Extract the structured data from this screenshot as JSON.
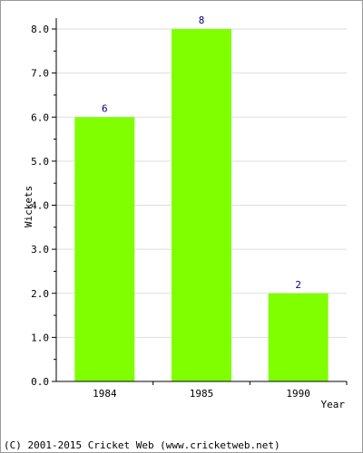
{
  "chart_data": {
    "type": "bar",
    "categories": [
      "1984",
      "1985",
      "1990"
    ],
    "values": [
      6,
      8,
      2
    ],
    "data_labels": [
      "6",
      "8",
      "2"
    ],
    "xlabel": "Year",
    "ylabel": "Wickets",
    "ylim": [
      0,
      8
    ],
    "yticks": [
      "0.0",
      "1.0",
      "2.0",
      "3.0",
      "4.0",
      "5.0",
      "6.0",
      "7.0",
      "8.0"
    ],
    "grid": true,
    "bar_color": "#80ff00",
    "label_color": "#000080"
  },
  "footer": "(C) 2001-2015 Cricket Web (www.cricketweb.net)"
}
